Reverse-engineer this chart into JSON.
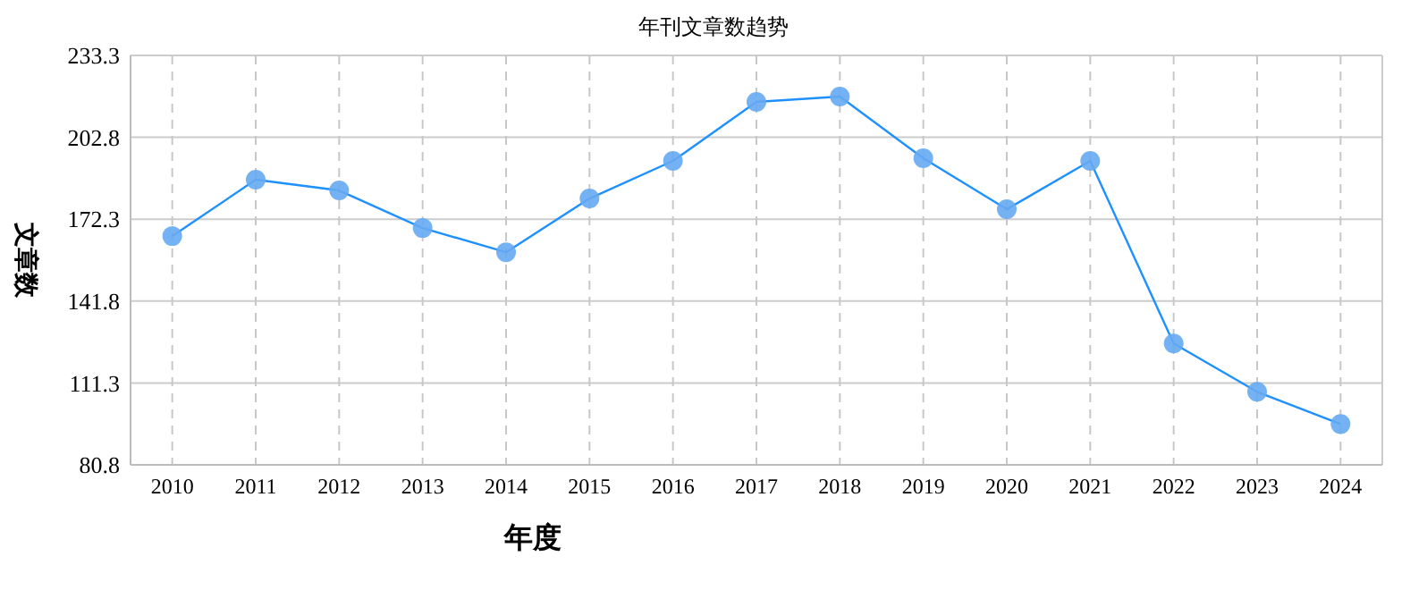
{
  "chart_data": {
    "type": "line",
    "title": "年刊文章数趋势",
    "xlabel": "年度",
    "ylabel": "文章数",
    "categories": [
      "2010",
      "2011",
      "2012",
      "2013",
      "2014",
      "2015",
      "2016",
      "2017",
      "2018",
      "2019",
      "2020",
      "2021",
      "2022",
      "2023",
      "2024"
    ],
    "series": [
      {
        "color": "#1e90ff",
        "values": [
          166,
          187,
          183,
          169,
          160,
          180,
          194,
          216,
          218,
          195,
          176,
          194,
          126,
          108,
          96
        ]
      }
    ],
    "ylim": [
      80.8,
      233.3
    ],
    "yticks": [
      80.8,
      111.3,
      141.8,
      172.3,
      202.8,
      233.3
    ],
    "grid": true,
    "marker": "circle",
    "line_style": "solid"
  }
}
